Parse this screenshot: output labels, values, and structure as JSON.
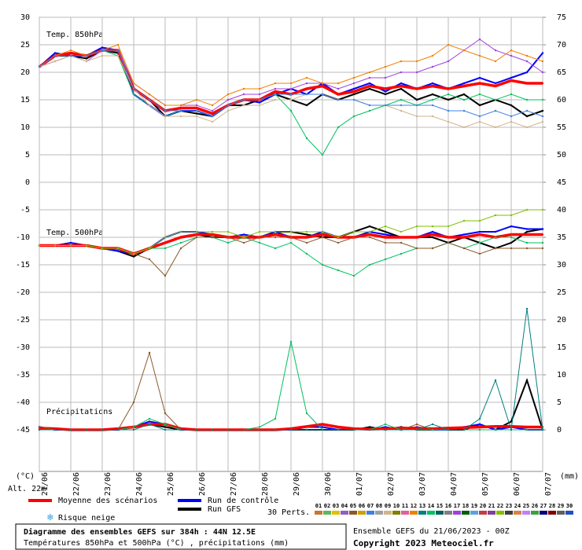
{
  "chart_data": {
    "type": "line",
    "panel_labels": [
      "Temp. 850hPa",
      "Temp. 500hPa",
      "Précipitations"
    ],
    "y_unit": "(°C)",
    "y2_unit": "(mm)",
    "altitude": "Alt. 22m",
    "snow_label": "Risque neige",
    "perts_label": "30 Perts.",
    "title": "Diagramme des ensembles GEFS sur 384h : 44N 12.5E",
    "subtitle": "Températures 850hPa et 500hPa (°C) , précipitations (mm)",
    "run_info": "Ensemble GEFS du 21/06/2023 - 00Z",
    "copyright": "Copyright 2023 Meteociel.fr",
    "xlim": [
      0,
      16
    ],
    "xticks": [
      {
        "value": 0,
        "label": "21/06"
      },
      {
        "value": 1,
        "label": "22/06"
      },
      {
        "value": 2,
        "label": "23/06"
      },
      {
        "value": 3,
        "label": "24/06"
      },
      {
        "value": 4,
        "label": "25/06"
      },
      {
        "value": 5,
        "label": "26/06"
      },
      {
        "value": 6,
        "label": "27/06"
      },
      {
        "value": 7,
        "label": "28/06"
      },
      {
        "value": 8,
        "label": "29/06"
      },
      {
        "value": 9,
        "label": "30/06"
      },
      {
        "value": 10,
        "label": "01/07"
      },
      {
        "value": 11,
        "label": "02/07"
      },
      {
        "value": 12,
        "label": "03/07"
      },
      {
        "value": 13,
        "label": "04/07"
      },
      {
        "value": 14,
        "label": "05/07"
      },
      {
        "value": 15,
        "label": "06/07"
      },
      {
        "value": 16,
        "label": "07/07"
      }
    ],
    "ylim": [
      -45,
      30
    ],
    "yticks": [
      -45,
      -40,
      -35,
      -30,
      -25,
      -20,
      -15,
      -10,
      -5,
      0,
      5,
      10,
      15,
      20,
      25,
      30
    ],
    "y2lim": [
      0,
      75
    ],
    "y2ticks": [
      0,
      5,
      10,
      15,
      20,
      25,
      30,
      35,
      40,
      45,
      50,
      55,
      60,
      65,
      70,
      75
    ],
    "grid": true,
    "x": [
      0,
      0.5,
      1,
      1.5,
      2,
      2.5,
      3,
      3.5,
      4,
      4.5,
      5,
      5.5,
      6,
      6.5,
      7,
      7.5,
      8,
      8.5,
      9,
      9.5,
      10,
      10.5,
      11,
      11.5,
      12,
      12.5,
      13,
      13.5,
      14,
      14.5,
      15,
      15.5,
      16
    ],
    "series": [
      {
        "name": "Moyenne des scénarios",
        "color": "#ff0000",
        "values": [
          21,
          23,
          23.5,
          23,
          24,
          24,
          17,
          15,
          13,
          13.5,
          13.5,
          12.5,
          14,
          15,
          15,
          16.5,
          16,
          17,
          17.5,
          16,
          16.5,
          17.5,
          17,
          17.5,
          17,
          17.5,
          17,
          17.5,
          18,
          17.5,
          18.5,
          18,
          18
        ]
      },
      {
        "name": "Run de contrôle",
        "color": "#0000ff",
        "values": [
          21,
          23.5,
          23,
          23,
          24.5,
          24,
          16,
          14,
          12,
          13,
          13,
          12,
          14,
          15,
          14.5,
          16,
          17,
          16,
          18,
          16,
          17,
          18,
          16.5,
          18,
          17,
          18,
          17,
          18,
          19,
          18,
          19,
          20,
          23.5
        ]
      },
      {
        "name": "Run GFS",
        "color": "#000000",
        "values": [
          21,
          23,
          23,
          22.5,
          24,
          23.5,
          17,
          15,
          12,
          13,
          12.5,
          12,
          14,
          14,
          15,
          16,
          15,
          14,
          16,
          15,
          16,
          17,
          16,
          17,
          15,
          16,
          15,
          16,
          14,
          15,
          14,
          12,
          13
        ]
      },
      {
        "name": "17",
        "color": "#a040e0",
        "values": [
          21,
          22,
          23,
          22,
          24,
          24,
          18,
          16,
          14,
          14,
          14,
          13,
          15,
          16,
          16,
          17,
          17,
          18,
          18,
          17,
          18,
          19,
          19,
          20,
          20,
          21,
          22,
          24,
          26,
          24,
          23,
          22,
          20
        ]
      },
      {
        "name": "14",
        "color": "#00c060",
        "values": [
          21,
          23,
          23,
          23,
          24,
          23,
          16,
          14,
          12,
          13,
          13,
          12,
          14,
          15,
          15,
          16,
          13,
          8,
          5,
          10,
          12,
          13,
          14,
          15,
          14,
          15,
          16,
          15,
          16,
          15,
          16,
          15,
          15
        ]
      },
      {
        "name": "12",
        "color": "#f08000",
        "values": [
          21,
          23,
          24,
          23,
          24,
          25,
          18,
          16,
          14,
          14,
          15,
          14,
          16,
          17,
          17,
          18,
          18,
          19,
          18,
          18,
          19,
          20,
          21,
          22,
          22,
          23,
          25,
          24,
          23,
          22,
          24,
          23,
          22
        ]
      },
      {
        "name": "09",
        "color": "#d2b48c",
        "values": [
          21,
          22,
          23,
          22,
          23,
          23,
          17,
          14,
          12,
          12,
          12,
          11,
          13,
          14,
          14,
          15,
          15,
          16,
          16,
          15,
          15,
          14,
          14,
          13,
          12,
          12,
          11,
          10,
          11,
          10,
          11,
          10,
          11
        ]
      },
      {
        "name": "07",
        "color": "#4080e0",
        "values": [
          21,
          23,
          23,
          23,
          24,
          24,
          17,
          15,
          13,
          13,
          13,
          12,
          14,
          15,
          15,
          16,
          16,
          16,
          16,
          15,
          15,
          14,
          14,
          14,
          14,
          14,
          13,
          13,
          12,
          13,
          12,
          13,
          12
        ]
      },
      {
        "name": "Moyenne des scénarios",
        "color": "#ff0000",
        "values": [
          -11.5,
          -11.5,
          -11.5,
          -11.5,
          -12,
          -12,
          -13,
          -12,
          -11,
          -10,
          -9.5,
          -9.5,
          -10,
          -10,
          -10,
          -9.5,
          -10,
          -10,
          -9.5,
          -10,
          -10,
          -9.5,
          -10,
          -10,
          -10,
          -9.5,
          -10,
          -10,
          -9.5,
          -10,
          -9.5,
          -9.5,
          -9.5
        ]
      },
      {
        "name": "Run de contrôle",
        "color": "#0000ff",
        "values": [
          -11.5,
          -11.5,
          -11,
          -11.5,
          -12,
          -12.5,
          -13,
          -12,
          -10,
          -9,
          -9,
          -9.5,
          -10,
          -9.5,
          -10,
          -9,
          -10,
          -10,
          -9,
          -10,
          -10,
          -9,
          -9.5,
          -10,
          -10,
          -9,
          -10,
          -9.5,
          -9,
          -9,
          -8,
          -8.5,
          -8.5
        ]
      },
      {
        "name": "Run GFS",
        "color": "#000000",
        "values": [
          -11.5,
          -11.5,
          -11.5,
          -11.5,
          -12,
          -12.5,
          -13.5,
          -12,
          -11,
          -10,
          -9.5,
          -10,
          -10,
          -10,
          -10,
          -9,
          -9,
          -9.5,
          -10,
          -10,
          -9,
          -8,
          -9,
          -10,
          -10,
          -10,
          -11,
          -10,
          -11,
          -12,
          -11,
          -9,
          -8.5
        ]
      },
      {
        "name": "14",
        "color": "#00c060",
        "values": [
          -11.5,
          -11.5,
          -11.5,
          -11.5,
          -12,
          -12,
          -13,
          -12,
          -12,
          -11,
          -10,
          -10,
          -11,
          -10,
          -11,
          -12,
          -11,
          -13,
          -15,
          -16,
          -17,
          -15,
          -14,
          -13,
          -12,
          -12,
          -11,
          -12,
          -11,
          -10,
          -10,
          -11,
          -11
        ]
      },
      {
        "name": "05",
        "color": "#8b5a2b",
        "values": [
          -11.5,
          -11.5,
          -11.5,
          -11.5,
          -12,
          -12,
          -13,
          -14,
          -17,
          -12,
          -10,
          -10,
          -10,
          -11,
          -10,
          -10,
          -10,
          -11,
          -10,
          -11,
          -10,
          -10,
          -11,
          -11,
          -12,
          -12,
          -11,
          -12,
          -13,
          -12,
          -12,
          -12,
          -12
        ]
      },
      {
        "name": "22",
        "color": "#80c000",
        "values": [
          -11.5,
          -11.5,
          -11.5,
          -11.5,
          -12,
          -12,
          -13,
          -12,
          -10,
          -9,
          -9,
          -9,
          -9,
          -10,
          -9,
          -9,
          -9,
          -9,
          -9,
          -10,
          -9,
          -9,
          -8,
          -9,
          -8,
          -8,
          -8,
          -7,
          -7,
          -6,
          -6,
          -5,
          -5
        ]
      },
      {
        "name": "Moyenne des scénarios",
        "color": "#ff0000",
        "axis": "y2",
        "values": [
          0.3,
          0.2,
          0,
          0,
          0,
          0.2,
          0.5,
          1,
          1,
          0.2,
          0,
          0,
          0,
          0,
          0,
          0,
          0.2,
          0.6,
          1,
          0.5,
          0.2,
          0.1,
          0.2,
          0.3,
          0.3,
          0.2,
          0.3,
          0.4,
          0.5,
          0.6,
          0.6,
          0.5,
          0.5
        ]
      },
      {
        "name": "Run de contrôle",
        "color": "#0000ff",
        "axis": "y2",
        "values": [
          0.5,
          0,
          0,
          0,
          0,
          0,
          0.5,
          1.5,
          1,
          0,
          0,
          0,
          0,
          0,
          0,
          0,
          0,
          0.5,
          0.5,
          0,
          0.2,
          0,
          0.5,
          0,
          0.5,
          0,
          0,
          0.5,
          1,
          0,
          0.5,
          0,
          0
        ]
      },
      {
        "name": "Run GFS",
        "color": "#000000",
        "axis": "y2",
        "values": [
          0.5,
          0,
          0,
          0,
          0,
          0,
          0.5,
          1,
          0.5,
          0,
          0,
          0,
          0,
          0,
          0,
          0,
          0,
          0,
          0,
          0,
          0,
          0.5,
          0,
          0.5,
          0,
          0,
          0,
          0,
          1,
          0,
          1.5,
          9,
          0
        ]
      },
      {
        "name": "05",
        "color": "#8b5a2b",
        "axis": "y2",
        "values": [
          0.5,
          0,
          0,
          0,
          0,
          0,
          5,
          14,
          3,
          0,
          0,
          0,
          0,
          0,
          0,
          0,
          0,
          0,
          0,
          0,
          0,
          0,
          0,
          0,
          1,
          0,
          0,
          0,
          0,
          0,
          0,
          0,
          0
        ]
      },
      {
        "name": "14",
        "color": "#00c060",
        "axis": "y2",
        "values": [
          0,
          0,
          0,
          0,
          0,
          0,
          0.5,
          2,
          1,
          0,
          0,
          0,
          0,
          0,
          0.5,
          2,
          16,
          3,
          0,
          0,
          0,
          0,
          1,
          0,
          0,
          0,
          0,
          0,
          0,
          0,
          0,
          0,
          0
        ]
      },
      {
        "name": "13",
        "color": "#008080",
        "axis": "y2",
        "values": [
          0,
          0,
          0,
          0,
          0,
          0,
          0,
          1,
          0,
          0,
          0,
          0,
          0,
          0,
          0,
          0,
          0,
          0,
          0,
          0,
          0,
          0,
          0,
          0,
          0,
          1,
          0,
          0,
          2,
          9,
          0,
          22,
          0
        ]
      }
    ],
    "perturbations": [
      {
        "name": "01",
        "color": "#c87832"
      },
      {
        "name": "02",
        "color": "#5cb85c"
      },
      {
        "name": "03",
        "color": "#e0c000"
      },
      {
        "name": "04",
        "color": "#9060c0"
      },
      {
        "name": "05",
        "color": "#8b5a2b"
      },
      {
        "name": "06",
        "color": "#d0a000"
      },
      {
        "name": "07",
        "color": "#4080e0"
      },
      {
        "name": "08",
        "color": "#a0a0a0"
      },
      {
        "name": "09",
        "color": "#d2b48c"
      },
      {
        "name": "10",
        "color": "#808000"
      },
      {
        "name": "11",
        "color": "#e060a0"
      },
      {
        "name": "12",
        "color": "#f08000"
      },
      {
        "name": "13",
        "color": "#008080"
      },
      {
        "name": "14",
        "color": "#00c060"
      },
      {
        "name": "15",
        "color": "#006060"
      },
      {
        "name": "16",
        "color": "#808080"
      },
      {
        "name": "17",
        "color": "#a040e0"
      },
      {
        "name": "18",
        "color": "#006000"
      },
      {
        "name": "19",
        "color": "#60a0e0"
      },
      {
        "name": "20",
        "color": "#c04040"
      },
      {
        "name": "21",
        "color": "#8040a0"
      },
      {
        "name": "22",
        "color": "#80c000"
      },
      {
        "name": "23",
        "color": "#404040"
      },
      {
        "name": "24",
        "color": "#e08040"
      },
      {
        "name": "25",
        "color": "#c080ff"
      },
      {
        "name": "26",
        "color": "#40a040"
      },
      {
        "name": "27",
        "color": "#000080"
      },
      {
        "name": "28",
        "color": "#800000"
      },
      {
        "name": "29",
        "color": "#606060"
      },
      {
        "name": "30",
        "color": "#2050c0"
      }
    ]
  }
}
